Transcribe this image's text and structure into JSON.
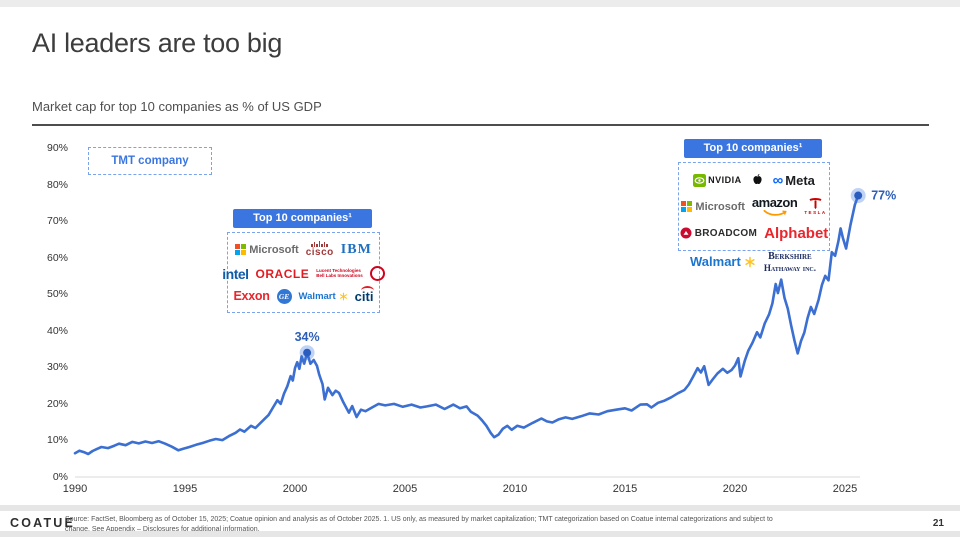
{
  "slide": {
    "title": "AI leaders are too big",
    "subtitle": "Market cap for top 10 companies as % of US GDP",
    "brand": "COATUE",
    "page_number": "21",
    "footnote_line1": "Source: FactSet, Bloomberg as of October 15, 2025; Coatue opinion and analysis as of October 2025. 1. US only, as measured by market capitalization; TMT categorization based on Coatue internal categorizations and subject to",
    "footnote_line2": "change. See Appendix – Disclosures for additional information."
  },
  "legend": {
    "tmt_label": "TMT company"
  },
  "callouts": {
    "left_header": "Top 10 companies¹",
    "right_header": "Top 10 companies¹"
  },
  "logos": {
    "microsoft": "Microsoft",
    "cisco": "cisco",
    "ibm": "IBM",
    "intel": "intel",
    "oracle": "ORACLE",
    "lucent_line1": "Lucent Technologies",
    "lucent_line2": "Bell Labs Innovations",
    "exxon": "Exxon",
    "ge": "GE",
    "walmart": "Walmart",
    "citi": "citi",
    "nvidia": "NVIDIA",
    "meta": "Meta",
    "meta_infinity": "∞",
    "amazon": "amazon",
    "tesla": "TESLA",
    "broadcom": "BROADCOM",
    "alphabet": "Alphabet",
    "berkshire_line1": "Berkshire",
    "berkshire_line2": "Hathaway inc."
  },
  "colors": {
    "accent_blue": "#3b76e0",
    "line_blue": "#3b6fd1",
    "annotation_blue": "#2d5fb8",
    "marker_dot": "#2b5dc0"
  },
  "chart_data": {
    "type": "line",
    "title": "Market cap for top 10 companies as % of US GDP",
    "xlabel": "",
    "ylabel": "% of US GDP",
    "x_ticks": [
      1990,
      1995,
      2000,
      2005,
      2010,
      2015,
      2020,
      2025
    ],
    "y_ticks": [
      0,
      10,
      20,
      30,
      40,
      50,
      60,
      70,
      80,
      90
    ],
    "x_range": [
      1990,
      2026
    ],
    "y_range": [
      0,
      90
    ],
    "grid": "baseline-only",
    "legend_position": "top-left",
    "series": [
      {
        "name": "TMT company",
        "color": "#3b6fd1",
        "points": [
          [
            1990,
            6.5
          ],
          [
            1990.2,
            7.2
          ],
          [
            1990.4,
            6.8
          ],
          [
            1990.6,
            6.3
          ],
          [
            1990.8,
            7.1
          ],
          [
            1991,
            7.7
          ],
          [
            1991.2,
            8.2
          ],
          [
            1991.5,
            7.9
          ],
          [
            1991.8,
            8.6
          ],
          [
            1992,
            9.1
          ],
          [
            1992.3,
            8.7
          ],
          [
            1992.6,
            9.6
          ],
          [
            1992.9,
            9.2
          ],
          [
            1993.2,
            9.7
          ],
          [
            1993.5,
            9.3
          ],
          [
            1993.8,
            9.8
          ],
          [
            1994.1,
            9.1
          ],
          [
            1994.4,
            8.3
          ],
          [
            1994.7,
            7.3
          ],
          [
            1994.9,
            7.7
          ],
          [
            1995.2,
            8.2
          ],
          [
            1995.5,
            8.8
          ],
          [
            1995.8,
            9.3
          ],
          [
            1996.1,
            9.9
          ],
          [
            1996.4,
            10.4
          ],
          [
            1996.7,
            10.1
          ],
          [
            1997,
            11.2
          ],
          [
            1997.3,
            12.1
          ],
          [
            1997.5,
            13
          ],
          [
            1997.7,
            12.4
          ],
          [
            1998,
            14
          ],
          [
            1998.2,
            13.4
          ],
          [
            1998.5,
            15.2
          ],
          [
            1998.8,
            17
          ],
          [
            1999,
            19
          ],
          [
            1999.2,
            21
          ],
          [
            1999.35,
            20
          ],
          [
            1999.5,
            22.8
          ],
          [
            1999.65,
            24.8
          ],
          [
            1999.8,
            27.6
          ],
          [
            1999.9,
            26.4
          ],
          [
            2000,
            29.8
          ],
          [
            2000.1,
            31.4
          ],
          [
            2000.2,
            29.6
          ],
          [
            2000.3,
            33
          ],
          [
            2000.42,
            31
          ],
          [
            2000.55,
            34
          ],
          [
            2000.7,
            31
          ],
          [
            2000.85,
            32
          ],
          [
            2001,
            30.4
          ],
          [
            2001.1,
            28
          ],
          [
            2001.25,
            25.4
          ],
          [
            2001.35,
            21.2
          ],
          [
            2001.5,
            24.4
          ],
          [
            2001.7,
            22.4
          ],
          [
            2001.85,
            23.6
          ],
          [
            2002,
            23
          ],
          [
            2002.2,
            20.4
          ],
          [
            2002.45,
            17.6
          ],
          [
            2002.6,
            19.4
          ],
          [
            2002.8,
            16.4
          ],
          [
            2003,
            18.4
          ],
          [
            2003.2,
            18
          ],
          [
            2003.5,
            19
          ],
          [
            2003.8,
            20
          ],
          [
            2004.1,
            19.6
          ],
          [
            2004.5,
            20
          ],
          [
            2004.9,
            19.2
          ],
          [
            2005.3,
            19.8
          ],
          [
            2005.7,
            19
          ],
          [
            2006,
            19.3
          ],
          [
            2006.4,
            19.8
          ],
          [
            2006.8,
            18.6
          ],
          [
            2007.2,
            19.8
          ],
          [
            2007.5,
            18.8
          ],
          [
            2007.8,
            19.3
          ],
          [
            2008,
            17.8
          ],
          [
            2008.3,
            16.8
          ],
          [
            2008.5,
            15.5
          ],
          [
            2008.7,
            14
          ],
          [
            2008.9,
            12
          ],
          [
            2009.05,
            10.9
          ],
          [
            2009.25,
            11.6
          ],
          [
            2009.45,
            13.2
          ],
          [
            2009.65,
            14
          ],
          [
            2009.85,
            12.9
          ],
          [
            2010.1,
            14
          ],
          [
            2010.4,
            13.5
          ],
          [
            2010.8,
            14.8
          ],
          [
            2011.2,
            16
          ],
          [
            2011.45,
            15.2
          ],
          [
            2011.7,
            14.9
          ],
          [
            2012,
            15.8
          ],
          [
            2012.3,
            16.3
          ],
          [
            2012.6,
            15.9
          ],
          [
            2013,
            16.6
          ],
          [
            2013.4,
            17.4
          ],
          [
            2013.8,
            17.1
          ],
          [
            2014.2,
            18
          ],
          [
            2014.6,
            18.4
          ],
          [
            2015,
            18.8
          ],
          [
            2015.3,
            18.2
          ],
          [
            2015.7,
            19.8
          ],
          [
            2016,
            19.9
          ],
          [
            2016.2,
            19
          ],
          [
            2016.5,
            20.3
          ],
          [
            2016.8,
            20.9
          ],
          [
            2017.1,
            21.8
          ],
          [
            2017.4,
            22.9
          ],
          [
            2017.7,
            23.8
          ],
          [
            2017.9,
            25.3
          ],
          [
            2018.1,
            27.5
          ],
          [
            2018.3,
            29.8
          ],
          [
            2018.45,
            28.6
          ],
          [
            2018.6,
            30.3
          ],
          [
            2018.8,
            25.2
          ],
          [
            2019,
            26.8
          ],
          [
            2019.2,
            28.3
          ],
          [
            2019.45,
            29.6
          ],
          [
            2019.65,
            28.5
          ],
          [
            2019.85,
            29.3
          ],
          [
            2020,
            30.5
          ],
          [
            2020.15,
            32.5
          ],
          [
            2020.25,
            27.5
          ],
          [
            2020.45,
            31.9
          ],
          [
            2020.6,
            34.5
          ],
          [
            2020.8,
            36.8
          ],
          [
            2021,
            39.6
          ],
          [
            2021.15,
            38.2
          ],
          [
            2021.35,
            42
          ],
          [
            2021.55,
            44.5
          ],
          [
            2021.7,
            47.5
          ],
          [
            2021.85,
            52.8
          ],
          [
            2021.95,
            50.3
          ],
          [
            2022.1,
            54
          ],
          [
            2022.25,
            49
          ],
          [
            2022.4,
            46
          ],
          [
            2022.55,
            41.5
          ],
          [
            2022.7,
            37.4
          ],
          [
            2022.85,
            33.8
          ],
          [
            2023,
            37.2
          ],
          [
            2023.15,
            39.5
          ],
          [
            2023.3,
            43.5
          ],
          [
            2023.45,
            46.5
          ],
          [
            2023.6,
            44.6
          ],
          [
            2023.8,
            48.5
          ],
          [
            2023.95,
            52.5
          ],
          [
            2024.1,
            55
          ],
          [
            2024.25,
            53.8
          ],
          [
            2024.4,
            61.5
          ],
          [
            2024.55,
            60.5
          ],
          [
            2024.7,
            64.5
          ],
          [
            2024.8,
            68
          ],
          [
            2024.9,
            65.5
          ],
          [
            2025.05,
            62.5
          ],
          [
            2025.25,
            69
          ],
          [
            2025.45,
            74.5
          ],
          [
            2025.6,
            77
          ]
        ]
      }
    ],
    "annotations": [
      {
        "x": 2000.55,
        "y": 34,
        "label": "34%",
        "placement": "above"
      },
      {
        "x": 2025.6,
        "y": 77,
        "label": "77%",
        "placement": "right"
      }
    ]
  }
}
